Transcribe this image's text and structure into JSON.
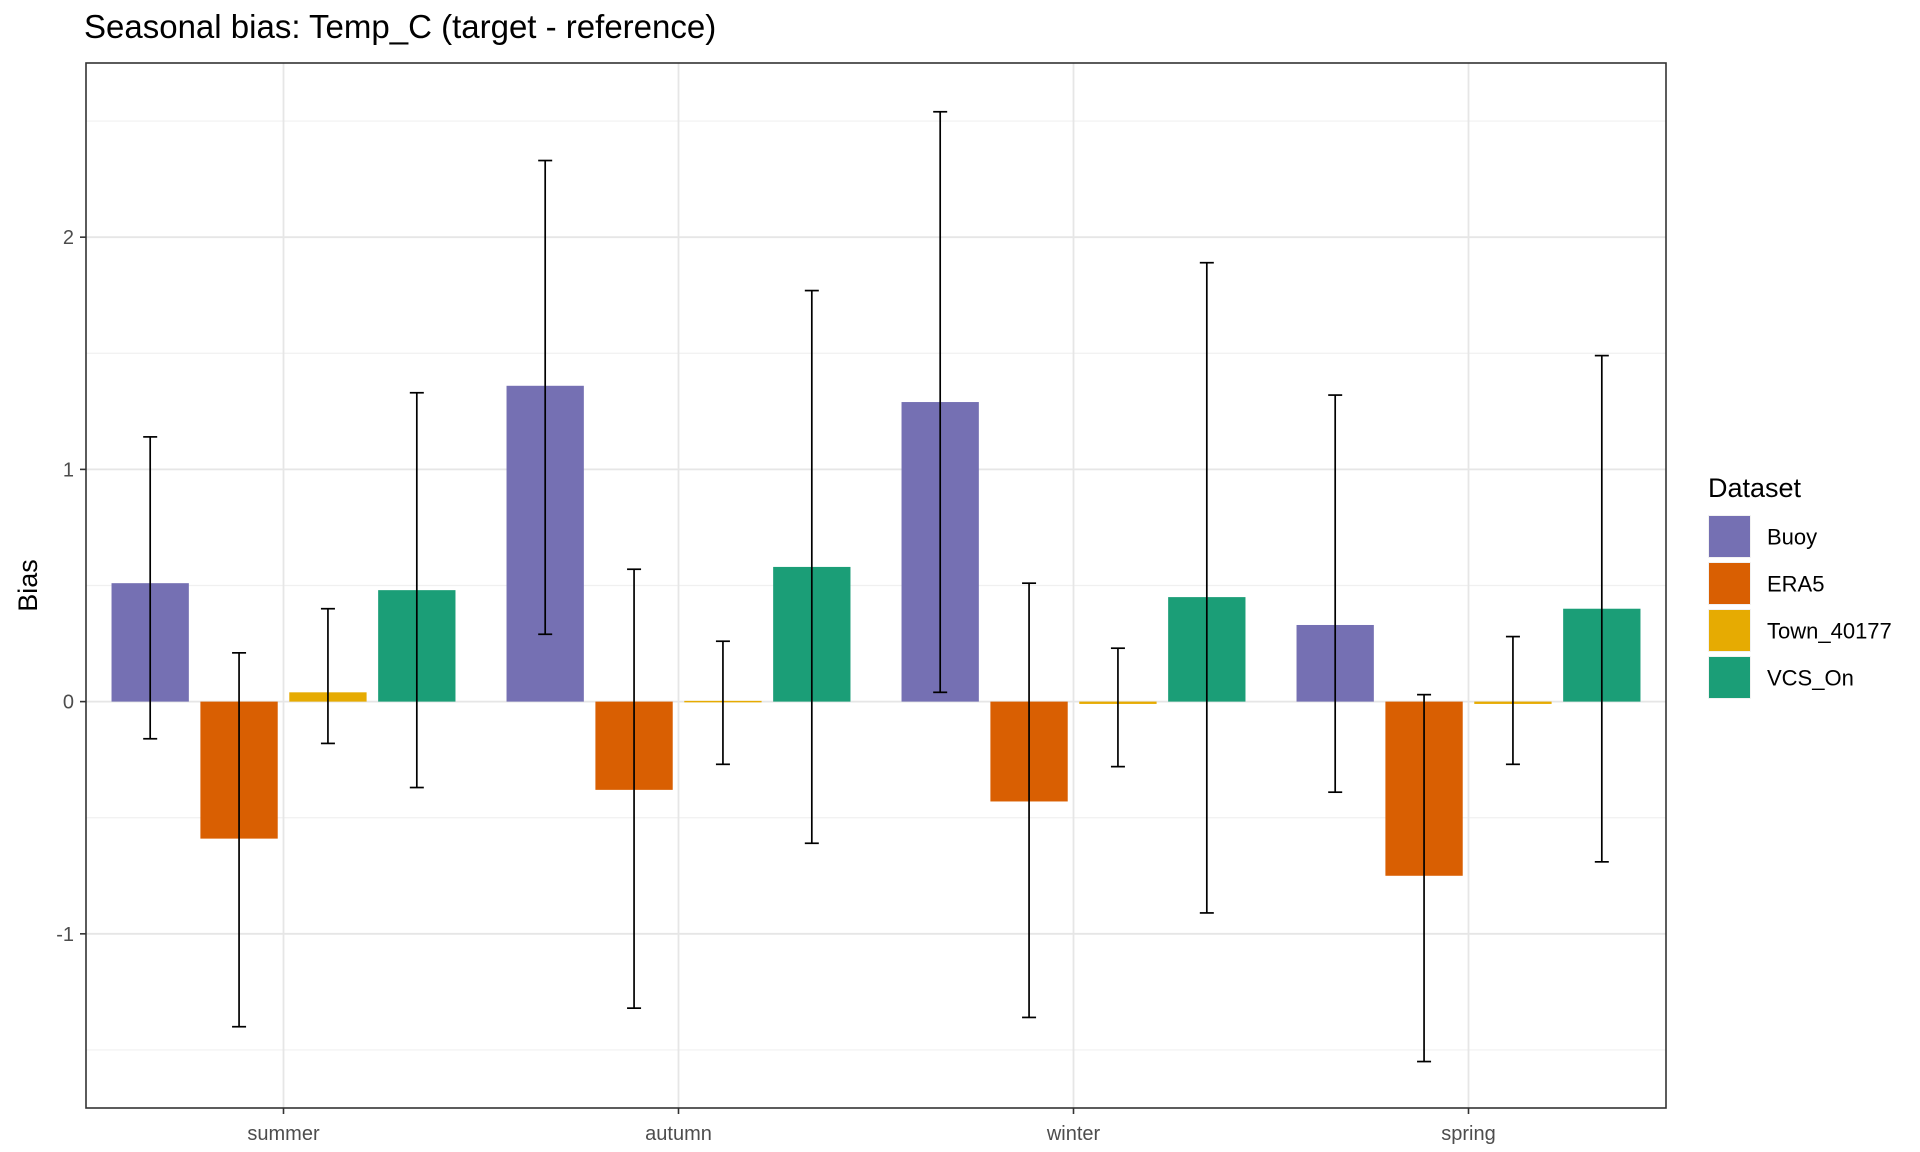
{
  "chart_data": {
    "type": "bar",
    "title": "Seasonal bias: Temp_C (target - reference)",
    "xlabel": "",
    "ylabel": "Bias",
    "ylim": [
      -1.75,
      2.75
    ],
    "yticks": [
      -1,
      0,
      1,
      2
    ],
    "ytick_labels": [
      "-1",
      "0",
      "1",
      "2"
    ],
    "grid": true,
    "legend": {
      "title": "Dataset",
      "position": "right"
    },
    "categories": [
      "summer",
      "autumn",
      "winter",
      "spring"
    ],
    "series": [
      {
        "name": "Buoy",
        "color": "#7570B3",
        "values": [
          0.51,
          1.36,
          1.29,
          0.33
        ],
        "error_low": [
          -0.16,
          0.29,
          0.04,
          -0.39
        ],
        "error_high": [
          1.14,
          2.33,
          2.54,
          1.32
        ]
      },
      {
        "name": "ERA5",
        "color": "#D95F02",
        "values": [
          -0.59,
          -0.38,
          -0.43,
          -0.75
        ],
        "error_low": [
          -1.4,
          -1.32,
          -1.36,
          -1.55
        ],
        "error_high": [
          0.21,
          0.57,
          0.51,
          0.03
        ]
      },
      {
        "name": "Town_40177",
        "color": "#E6AB02",
        "values": [
          0.04,
          0.0,
          -0.01,
          -0.01
        ],
        "error_low": [
          -0.18,
          -0.27,
          -0.28,
          -0.27
        ],
        "error_high": [
          0.4,
          0.26,
          0.23,
          0.28
        ]
      },
      {
        "name": "VCS_On",
        "color": "#1B9E77",
        "values": [
          0.48,
          0.58,
          0.45,
          0.4
        ],
        "error_low": [
          -0.37,
          -0.61,
          -0.91,
          -0.69
        ],
        "error_high": [
          1.33,
          1.77,
          1.89,
          1.49
        ]
      }
    ]
  }
}
